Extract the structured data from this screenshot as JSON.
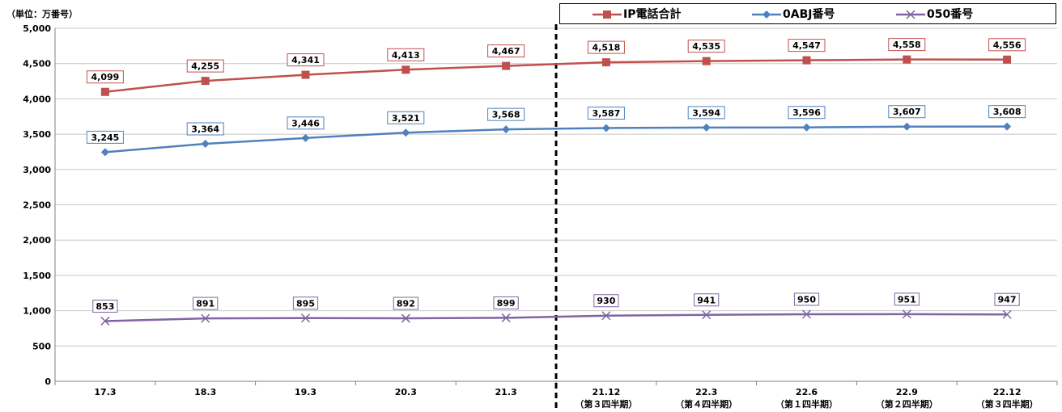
{
  "unit_label": "（単位：万番号）",
  "colors": {
    "ip_total": "#C0504D",
    "oabj": "#4F81BD",
    "050": "#8064A2"
  },
  "chart_data": {
    "type": "line",
    "categories": [
      "17.3",
      "18.3",
      "19.3",
      "20.3",
      "21.3",
      "21.12",
      "22.3",
      "22.6",
      "22.9",
      "22.12"
    ],
    "category_sublabels": [
      "",
      "",
      "",
      "",
      "",
      "（第３四半期）",
      "（第４四半期）",
      "（第１四半期）",
      "（第２四半期）",
      "（第３四半期）"
    ],
    "ylim": [
      0,
      5000
    ],
    "yticks": [
      "0",
      "500",
      "1,000",
      "1,500",
      "2,000",
      "2,500",
      "3,000",
      "3,500",
      "4,000",
      "4,500",
      "5,000"
    ],
    "grid": true,
    "legend_position": "top-right",
    "series": [
      {
        "name": "IP電話合計",
        "marker": "square",
        "color": "#C0504D",
        "values": [
          4099,
          4255,
          4341,
          4413,
          4467,
          4518,
          4535,
          4547,
          4558,
          4556
        ],
        "labels": [
          "4,099",
          "4,255",
          "4,341",
          "4,413",
          "4,467",
          "4,518",
          "4,535",
          "4,547",
          "4,558",
          "4,556"
        ]
      },
      {
        "name": "0ABJ番号",
        "marker": "diamond",
        "color": "#4F81BD",
        "values": [
          3245,
          3364,
          3446,
          3521,
          3568,
          3587,
          3594,
          3596,
          3607,
          3608
        ],
        "labels": [
          "3,245",
          "3,364",
          "3,446",
          "3,521",
          "3,568",
          "3,587",
          "3,594",
          "3,596",
          "3,607",
          "3,608"
        ]
      },
      {
        "name": "050番号",
        "marker": "x",
        "color": "#8064A2",
        "values": [
          853,
          891,
          895,
          892,
          899,
          930,
          941,
          950,
          951,
          947
        ],
        "labels": [
          "853",
          "891",
          "895",
          "892",
          "899",
          "930",
          "941",
          "950",
          "951",
          "947"
        ]
      }
    ]
  }
}
